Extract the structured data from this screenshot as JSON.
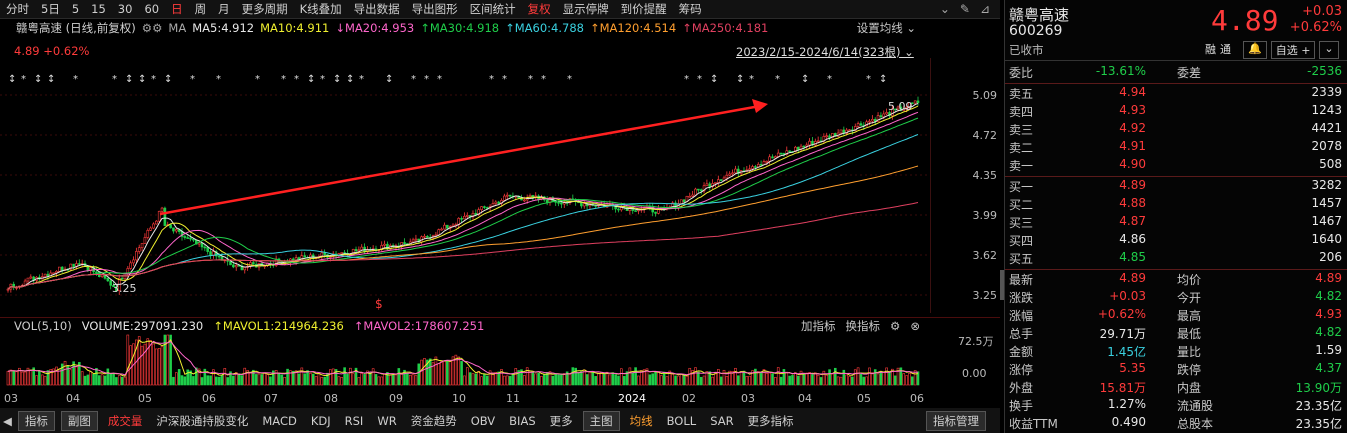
{
  "toolbar": {
    "items": [
      "分时",
      "5日",
      "5",
      "15",
      "30",
      "60",
      "日",
      "周",
      "月",
      "更多周期",
      "K线叠加",
      "导出数据",
      "导出图形",
      "区间统计",
      "复权",
      "显示停牌",
      "到价提醒",
      "筹码"
    ]
  },
  "stock_line": {
    "name": "赣粤高速 (日线,前复权)",
    "ma_label": "MA",
    "ma5": "MA5:4.912",
    "ma10": "MA10:4.911",
    "ma20": "MA20:4.953",
    "ma30": "MA30:4.918",
    "ma60": "MA60:4.788",
    "ma120": "MA120:4.514",
    "ma250": "MA250:4.181",
    "settings": "设置均线"
  },
  "price_row": {
    "price": "4.89",
    "change_pct": "+0.62%"
  },
  "range_label": "2023/2/15-2024/6/14(323根)",
  "y_axis": [
    "5.09",
    "4.72",
    "4.35",
    "3.99",
    "3.62",
    "3.25"
  ],
  "annotations": {
    "high": "5.09",
    "low": "3.25"
  },
  "volume": {
    "label": "VOL(5,10)",
    "volume": "VOLUME:297091.230",
    "mavol1": "MAVOL1:214964.236",
    "mavol2": "MAVOL2:178607.251",
    "add_indicator": "加指标",
    "change_indicator": "换指标",
    "y_top": "72.5万",
    "y_bottom": "0.00"
  },
  "x_axis": [
    "03",
    "04",
    "05",
    "06",
    "07",
    "08",
    "09",
    "10",
    "11",
    "12",
    "2024",
    "02",
    "03",
    "04",
    "05",
    "06"
  ],
  "bottom_bar": [
    "指标",
    "副图",
    "成交量",
    "沪深股通持股变化",
    "MACD",
    "KDJ",
    "RSI",
    "WR",
    "资金趋势",
    "OBV",
    "BIAS",
    "更多",
    "主图",
    "均线",
    "BOLL",
    "SAR",
    "更多指标",
    "指标管理"
  ],
  "quote": {
    "name": "赣粤高速",
    "code": "600269",
    "status": "已收市",
    "price": "4.89",
    "change": "+0.03",
    "change_pct": "+0.62%",
    "btn_finance": "融",
    "btn_tong": "通",
    "btn_watch": "自选",
    "webi_label": "委比",
    "webi": "-13.61%",
    "weicha_label": "委差",
    "weicha": "-2536",
    "asks": [
      {
        "label": "卖五",
        "price": "4.94",
        "vol": "2339"
      },
      {
        "label": "卖四",
        "price": "4.93",
        "vol": "1243"
      },
      {
        "label": "卖三",
        "price": "4.92",
        "vol": "4421"
      },
      {
        "label": "卖二",
        "price": "4.91",
        "vol": "2078"
      },
      {
        "label": "卖一",
        "price": "4.90",
        "vol": "508"
      }
    ],
    "bids": [
      {
        "label": "买一",
        "price": "4.89",
        "vol": "3282"
      },
      {
        "label": "买二",
        "price": "4.88",
        "vol": "1457"
      },
      {
        "label": "买三",
        "price": "4.87",
        "vol": "1467"
      },
      {
        "label": "买四",
        "price": "4.86",
        "vol": "1640"
      },
      {
        "label": "买五",
        "price": "4.85",
        "vol": "206"
      }
    ],
    "stats": [
      {
        "l1": "最新",
        "v1": "4.89",
        "c1": "red",
        "l2": "均价",
        "v2": "4.89",
        "c2": "red"
      },
      {
        "l1": "涨跌",
        "v1": "+0.03",
        "c1": "red",
        "l2": "今开",
        "v2": "4.82",
        "c2": "green"
      },
      {
        "l1": "涨幅",
        "v1": "+0.62%",
        "c1": "red",
        "l2": "最高",
        "v2": "4.93",
        "c2": "red"
      },
      {
        "l1": "总手",
        "v1": "29.71万",
        "c1": "white",
        "l2": "最低",
        "v2": "4.82",
        "c2": "green"
      },
      {
        "l1": "金额",
        "v1": "1.45亿",
        "c1": "cyan",
        "l2": "量比",
        "v2": "1.59",
        "c2": "white"
      },
      {
        "l1": "涨停",
        "v1": "5.35",
        "c1": "red",
        "l2": "跌停",
        "v2": "4.37",
        "c2": "green"
      },
      {
        "l1": "外盘",
        "v1": "15.81万",
        "c1": "red",
        "l2": "内盘",
        "v2": "13.90万",
        "c2": "green"
      },
      {
        "l1": "换手",
        "v1": "1.27%",
        "c1": "white",
        "l2": "流通股",
        "v2": "23.35亿",
        "c2": "white"
      },
      {
        "l1": "收益TTM",
        "v1": "0.490",
        "c1": "white",
        "l2": "总股本",
        "v2": "23.35亿",
        "c2": "white"
      }
    ]
  },
  "colors": {
    "up": "#ff3b3b",
    "down": "#1fce4a",
    "ma5": "#e8e8e8",
    "ma10": "#f0f030",
    "ma20": "#ff66cc",
    "ma30": "#1fce4a",
    "ma60": "#3ad1e0",
    "ma120": "#ff9f2f",
    "ma250": "#e04060"
  }
}
